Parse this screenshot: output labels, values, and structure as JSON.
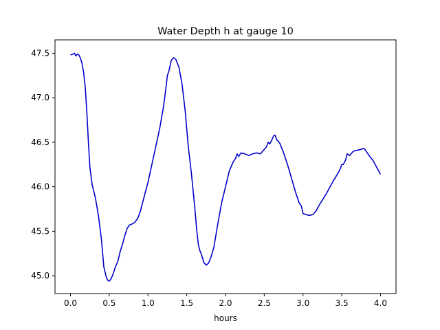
{
  "chart_data": {
    "type": "line",
    "title": "Water Depth h at gauge 10",
    "xlabel": "hours",
    "ylabel": "",
    "xlim": [
      -0.2,
      4.2
    ],
    "ylim": [
      44.8,
      47.65
    ],
    "xticks": [
      0.0,
      0.5,
      1.0,
      1.5,
      2.0,
      2.5,
      3.0,
      3.5,
      4.0
    ],
    "xtick_labels": [
      "0.0",
      "0.5",
      "1.0",
      "1.5",
      "2.0",
      "2.5",
      "3.0",
      "3.5",
      "4.0"
    ],
    "yticks": [
      45.0,
      45.5,
      46.0,
      46.5,
      47.0,
      47.5
    ],
    "ytick_labels": [
      "45.0",
      "45.5",
      "46.0",
      "46.5",
      "47.0",
      "47.5"
    ],
    "grid": false,
    "line_color": "#0000cc",
    "series": [
      {
        "x": [
          0.0,
          0.03,
          0.05,
          0.07,
          0.09,
          0.11,
          0.13,
          0.15,
          0.17,
          0.19,
          0.21,
          0.23,
          0.25,
          0.28,
          0.32,
          0.36,
          0.4,
          0.43,
          0.46,
          0.48,
          0.5,
          0.52,
          0.55,
          0.58,
          0.61,
          0.64,
          0.67,
          0.7,
          0.73,
          0.76,
          0.79,
          0.83,
          0.87,
          0.9,
          0.93,
          0.96,
          1.0,
          1.05,
          1.1,
          1.15,
          1.2,
          1.23,
          1.25,
          1.27,
          1.3,
          1.33,
          1.36,
          1.4,
          1.44,
          1.48,
          1.52,
          1.56,
          1.6,
          1.63,
          1.65,
          1.67,
          1.69,
          1.72,
          1.75,
          1.78,
          1.81,
          1.85,
          1.9,
          1.95,
          2.0,
          2.05,
          2.1,
          2.13,
          2.15,
          2.17,
          2.2,
          2.25,
          2.3,
          2.35,
          2.4,
          2.45,
          2.5,
          2.53,
          2.55,
          2.57,
          2.6,
          2.62,
          2.64,
          2.66,
          2.7,
          2.75,
          2.8,
          2.85,
          2.9,
          2.95,
          2.98,
          3.0,
          3.03,
          3.07,
          3.1,
          3.13,
          3.17,
          3.2,
          3.25,
          3.3,
          3.35,
          3.4,
          3.45,
          3.48,
          3.5,
          3.52,
          3.55,
          3.57,
          3.6,
          3.65,
          3.7,
          3.75,
          3.78,
          3.8,
          3.83,
          3.87,
          3.9,
          3.95,
          4.0
        ],
        "y": [
          47.48,
          47.49,
          47.5,
          47.47,
          47.49,
          47.48,
          47.44,
          47.38,
          47.28,
          47.12,
          46.85,
          46.52,
          46.22,
          46.02,
          45.88,
          45.68,
          45.4,
          45.1,
          44.99,
          44.95,
          44.94,
          44.96,
          45.02,
          45.1,
          45.16,
          45.27,
          45.35,
          45.45,
          45.53,
          45.57,
          45.58,
          45.6,
          45.65,
          45.72,
          45.82,
          45.92,
          46.05,
          46.25,
          46.45,
          46.65,
          46.9,
          47.1,
          47.25,
          47.3,
          47.42,
          47.45,
          47.43,
          47.34,
          47.15,
          46.85,
          46.45,
          46.15,
          45.8,
          45.5,
          45.35,
          45.28,
          45.24,
          45.15,
          45.12,
          45.14,
          45.2,
          45.32,
          45.58,
          45.82,
          46.0,
          46.18,
          46.28,
          46.32,
          46.37,
          46.34,
          46.38,
          46.37,
          46.35,
          46.37,
          46.38,
          46.37,
          46.42,
          46.45,
          46.5,
          46.48,
          46.53,
          46.57,
          46.58,
          46.53,
          46.49,
          46.38,
          46.25,
          46.1,
          45.95,
          45.82,
          45.78,
          45.7,
          45.69,
          45.68,
          45.68,
          45.69,
          45.73,
          45.78,
          45.85,
          45.92,
          46.0,
          46.08,
          46.15,
          46.2,
          46.25,
          46.25,
          46.3,
          46.37,
          46.35,
          46.4,
          46.41,
          46.42,
          46.43,
          46.42,
          46.38,
          46.33,
          46.3,
          46.22,
          46.14
        ]
      }
    ]
  }
}
